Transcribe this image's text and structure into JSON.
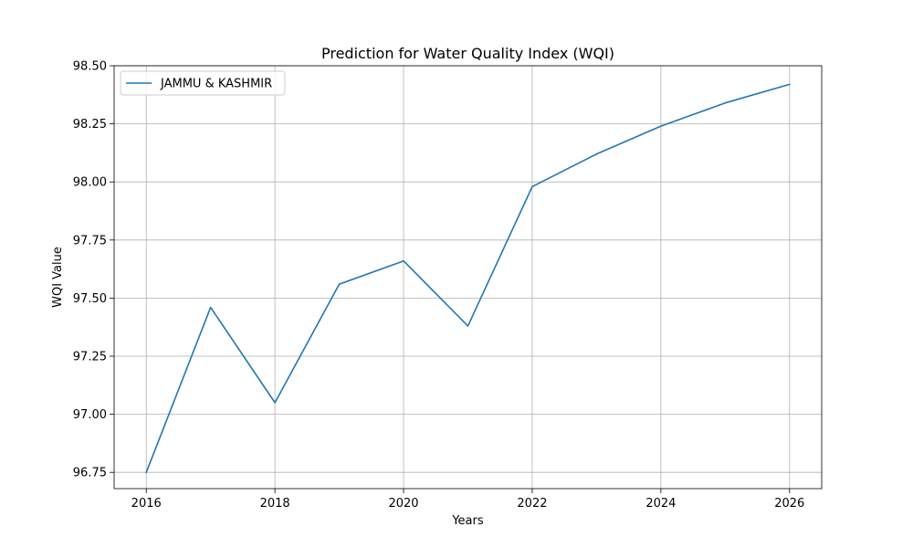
{
  "chart_data": {
    "type": "line",
    "title": "Prediction for Water Quality Index (WQI)",
    "xlabel": "Years",
    "ylabel": "WQI Value",
    "xlim": [
      2015.5,
      2026.5
    ],
    "ylim": [
      96.68,
      98.5
    ],
    "xticks": [
      2016,
      2018,
      2020,
      2022,
      2024,
      2026
    ],
    "yticks": [
      96.75,
      97.0,
      97.25,
      97.5,
      97.75,
      98.0,
      98.25,
      98.5
    ],
    "grid": true,
    "legend_position": "top-left",
    "series": [
      {
        "name": "JAMMU & KASHMIR",
        "color": "#1f77b4",
        "x": [
          2016,
          2017,
          2018,
          2019,
          2020,
          2021,
          2022,
          2023,
          2024,
          2025,
          2026
        ],
        "values": [
          96.75,
          97.46,
          97.05,
          97.56,
          97.66,
          97.38,
          97.98,
          98.12,
          98.24,
          98.34,
          98.42
        ]
      }
    ]
  }
}
